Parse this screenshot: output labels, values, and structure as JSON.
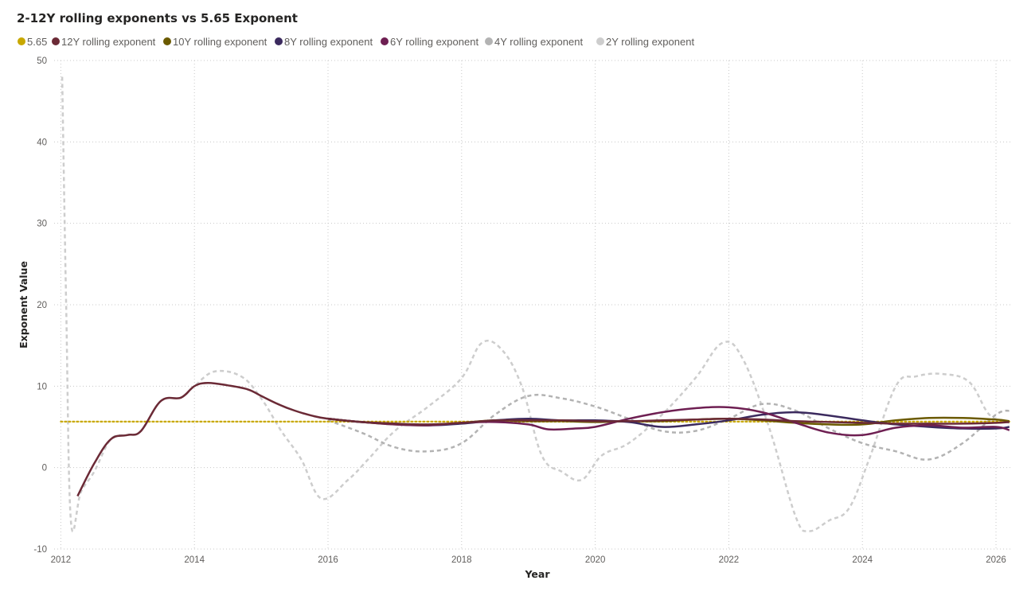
{
  "chart_data": {
    "type": "line",
    "title": "2-12Y rolling exponents vs 5.65 Exponent",
    "xlabel": "Year",
    "ylabel": "Exponent Value",
    "xlim": [
      2011.9,
      2026.25
    ],
    "ylim": [
      -10,
      50
    ],
    "x_ticks": [
      2012,
      2014,
      2016,
      2018,
      2020,
      2022,
      2024,
      2026
    ],
    "y_ticks": [
      -10,
      0,
      10,
      20,
      30,
      40,
      50
    ],
    "grid": true,
    "legend_position": "top-left",
    "series": [
      {
        "name": "5.65",
        "color": "#c8a800",
        "dash": "dotted",
        "width": 2.2,
        "points": [
          [
            2012.0,
            5.65
          ],
          [
            2026.2,
            5.65
          ]
        ]
      },
      {
        "name": "12Y rolling exponent",
        "color": "#6b2a36",
        "dash": "solid",
        "width": 2.5,
        "points": [
          [
            2012.25,
            -3.5
          ],
          [
            2012.5,
            0.5
          ],
          [
            2012.75,
            3.5
          ],
          [
            2013.0,
            4.0
          ],
          [
            2013.2,
            4.5
          ],
          [
            2013.5,
            8.2
          ],
          [
            2013.8,
            8.6
          ],
          [
            2014.0,
            10.0
          ],
          [
            2014.2,
            10.4
          ],
          [
            2014.5,
            10.1
          ],
          [
            2014.8,
            9.6
          ],
          [
            2015.0,
            8.8
          ],
          [
            2015.25,
            7.8
          ],
          [
            2015.5,
            7.0
          ],
          [
            2015.75,
            6.4
          ],
          [
            2016.0,
            6.0
          ],
          [
            2016.5,
            5.6
          ],
          [
            2017.0,
            5.4
          ],
          [
            2017.5,
            5.3
          ],
          [
            2018.0,
            5.5
          ],
          [
            2018.5,
            5.8
          ],
          [
            2019.0,
            5.8
          ],
          [
            2019.5,
            5.8
          ],
          [
            2020.0,
            5.7
          ],
          [
            2020.5,
            5.7
          ],
          [
            2021.0,
            5.8
          ],
          [
            2021.5,
            5.9
          ],
          [
            2022.0,
            6.0
          ],
          [
            2022.5,
            5.9
          ],
          [
            2023.0,
            5.7
          ],
          [
            2023.5,
            5.6
          ],
          [
            2024.0,
            5.5
          ],
          [
            2024.5,
            5.4
          ],
          [
            2025.0,
            5.4
          ],
          [
            2025.5,
            5.4
          ],
          [
            2026.0,
            5.5
          ],
          [
            2026.2,
            5.6
          ]
        ]
      },
      {
        "name": "10Y rolling exponent",
        "color": "#6b5a00",
        "dash": "solid",
        "width": 2.5,
        "points": [
          [
            2016.0,
            6.0
          ],
          [
            2016.5,
            5.6
          ],
          [
            2017.0,
            5.3
          ],
          [
            2017.5,
            5.2
          ],
          [
            2018.0,
            5.5
          ],
          [
            2018.5,
            5.8
          ],
          [
            2019.0,
            5.7
          ],
          [
            2019.5,
            5.7
          ],
          [
            2020.0,
            5.6
          ],
          [
            2020.5,
            5.7
          ],
          [
            2021.0,
            5.7
          ],
          [
            2021.5,
            5.9
          ],
          [
            2022.0,
            6.0
          ],
          [
            2022.5,
            5.8
          ],
          [
            2023.0,
            5.5
          ],
          [
            2023.5,
            5.3
          ],
          [
            2024.0,
            5.3
          ],
          [
            2024.5,
            5.8
          ],
          [
            2025.0,
            6.1
          ],
          [
            2025.5,
            6.1
          ],
          [
            2026.0,
            5.9
          ],
          [
            2026.2,
            5.7
          ]
        ]
      },
      {
        "name": "8Y rolling exponent",
        "color": "#3b2a5e",
        "dash": "solid",
        "width": 2.5,
        "points": [
          [
            2016.0,
            6.0
          ],
          [
            2016.5,
            5.6
          ],
          [
            2017.0,
            5.4
          ],
          [
            2017.5,
            5.2
          ],
          [
            2018.0,
            5.4
          ],
          [
            2018.5,
            5.8
          ],
          [
            2019.0,
            6.0
          ],
          [
            2019.5,
            5.8
          ],
          [
            2020.0,
            5.8
          ],
          [
            2020.5,
            5.6
          ],
          [
            2021.0,
            5.0
          ],
          [
            2021.5,
            5.3
          ],
          [
            2022.0,
            5.8
          ],
          [
            2022.5,
            6.5
          ],
          [
            2023.0,
            6.8
          ],
          [
            2023.5,
            6.4
          ],
          [
            2024.0,
            5.8
          ],
          [
            2024.5,
            5.3
          ],
          [
            2025.0,
            5.0
          ],
          [
            2025.5,
            4.8
          ],
          [
            2026.0,
            4.8
          ],
          [
            2026.2,
            5.0
          ]
        ]
      },
      {
        "name": "6Y rolling exponent",
        "color": "#6e1f52",
        "dash": "solid",
        "width": 2.5,
        "points": [
          [
            2016.0,
            6.0
          ],
          [
            2016.5,
            5.6
          ],
          [
            2017.0,
            5.3
          ],
          [
            2017.5,
            5.2
          ],
          [
            2018.0,
            5.5
          ],
          [
            2018.5,
            5.6
          ],
          [
            2019.0,
            5.3
          ],
          [
            2019.3,
            4.7
          ],
          [
            2019.7,
            4.8
          ],
          [
            2020.0,
            5.0
          ],
          [
            2020.5,
            6.0
          ],
          [
            2021.0,
            6.8
          ],
          [
            2021.5,
            7.3
          ],
          [
            2022.0,
            7.4
          ],
          [
            2022.5,
            6.8
          ],
          [
            2023.0,
            5.5
          ],
          [
            2023.5,
            4.3
          ],
          [
            2024.0,
            4.0
          ],
          [
            2024.5,
            4.9
          ],
          [
            2025.0,
            5.2
          ],
          [
            2025.5,
            4.9
          ],
          [
            2026.0,
            5.0
          ],
          [
            2026.2,
            4.6
          ]
        ]
      },
      {
        "name": "4Y rolling exponent",
        "color": "#b3b3b3",
        "dash": "dashed",
        "width": 2.5,
        "points": [
          [
            2016.0,
            5.8
          ],
          [
            2016.5,
            4.3
          ],
          [
            2017.0,
            2.5
          ],
          [
            2017.5,
            2.0
          ],
          [
            2018.0,
            3.0
          ],
          [
            2018.5,
            6.5
          ],
          [
            2019.0,
            8.8
          ],
          [
            2019.5,
            8.5
          ],
          [
            2020.0,
            7.5
          ],
          [
            2020.5,
            6.0
          ],
          [
            2021.0,
            4.5
          ],
          [
            2021.5,
            4.5
          ],
          [
            2022.0,
            6.0
          ],
          [
            2022.5,
            7.8
          ],
          [
            2023.0,
            7.0
          ],
          [
            2023.5,
            4.8
          ],
          [
            2024.0,
            3.0
          ],
          [
            2024.5,
            2.0
          ],
          [
            2025.0,
            1.0
          ],
          [
            2025.5,
            3.0
          ],
          [
            2026.0,
            6.5
          ],
          [
            2026.2,
            7.0
          ]
        ]
      },
      {
        "name": "2Y rolling exponent",
        "color": "#cdcdcd",
        "dash": "dashed",
        "width": 2.5,
        "points": [
          [
            2012.02,
            48.0
          ],
          [
            2012.08,
            20.0
          ],
          [
            2012.15,
            -6.5
          ],
          [
            2012.3,
            -3.0
          ],
          [
            2012.5,
            -0.5
          ],
          [
            2012.75,
            3.5
          ],
          [
            2013.0,
            4.0
          ],
          [
            2013.2,
            4.5
          ],
          [
            2013.5,
            8.2
          ],
          [
            2013.8,
            8.6
          ],
          [
            2014.0,
            10.0
          ],
          [
            2014.3,
            11.8
          ],
          [
            2014.7,
            11.2
          ],
          [
            2015.0,
            8.5
          ],
          [
            2015.3,
            4.5
          ],
          [
            2015.6,
            1.0
          ],
          [
            2015.9,
            -3.8
          ],
          [
            2016.3,
            -1.5
          ],
          [
            2016.6,
            1.0
          ],
          [
            2017.0,
            4.5
          ],
          [
            2017.5,
            7.5
          ],
          [
            2018.0,
            11.0
          ],
          [
            2018.3,
            15.3
          ],
          [
            2018.6,
            14.5
          ],
          [
            2018.9,
            10.0
          ],
          [
            2019.2,
            1.5
          ],
          [
            2019.5,
            -0.5
          ],
          [
            2019.8,
            -1.5
          ],
          [
            2020.1,
            1.5
          ],
          [
            2020.5,
            3.0
          ],
          [
            2021.0,
            6.5
          ],
          [
            2021.5,
            11.0
          ],
          [
            2021.9,
            15.3
          ],
          [
            2022.2,
            13.5
          ],
          [
            2022.6,
            5.0
          ],
          [
            2023.0,
            -6.0
          ],
          [
            2023.2,
            -7.8
          ],
          [
            2023.5,
            -6.5
          ],
          [
            2023.8,
            -5.0
          ],
          [
            2024.1,
            1.0
          ],
          [
            2024.5,
            10.0
          ],
          [
            2024.8,
            11.2
          ],
          [
            2025.2,
            11.5
          ],
          [
            2025.6,
            10.5
          ],
          [
            2025.9,
            6.5
          ],
          [
            2026.2,
            5.5
          ]
        ]
      }
    ]
  }
}
